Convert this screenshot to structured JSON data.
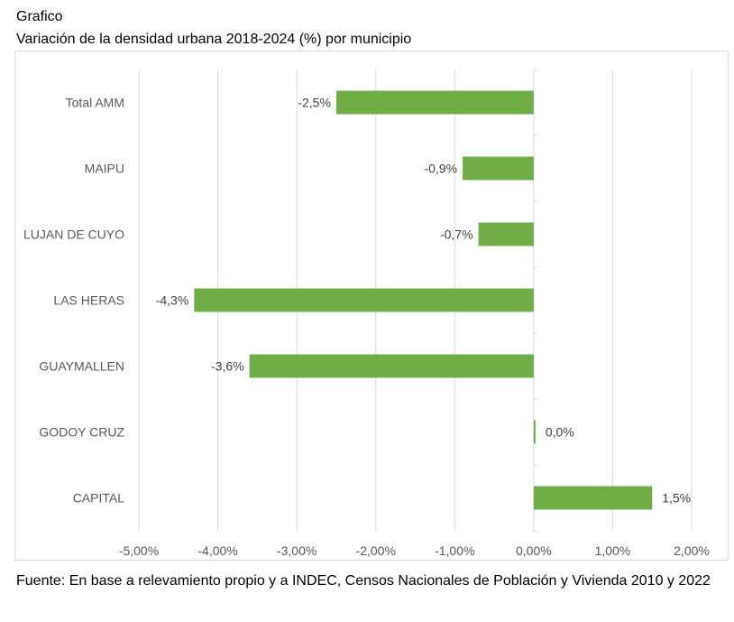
{
  "header": {
    "label": "Grafico",
    "title": "Variación de la densidad urbana 2018-2024 (%) por municipio"
  },
  "chart_data": {
    "type": "bar",
    "orientation": "horizontal",
    "title": "Variación de la densidad urbana 2018-2024 (%) por municipio",
    "xlabel": "",
    "ylabel": "",
    "categories": [
      "Total AMM",
      "MAIPU",
      "LUJAN DE CUYO",
      "LAS HERAS",
      "GUAYMALLEN",
      "GODOY CRUZ",
      "CAPITAL"
    ],
    "values": [
      -2.5,
      -0.9,
      -0.7,
      -4.3,
      -3.6,
      0.0,
      1.5
    ],
    "data_labels": [
      "-2,5%",
      "-0,9%",
      "-0,7%",
      "-4,3%",
      "-3,6%",
      "0,0%",
      "1,5%"
    ],
    "xlim": [
      -5.0,
      2.0
    ],
    "xticks": [
      -5,
      -4,
      -3,
      -2,
      -1,
      0,
      1,
      2
    ],
    "xtick_labels": [
      "-5,00%",
      "-4,00%",
      "-3,00%",
      "-2,00%",
      "-1,00%",
      "0,00%",
      "1,00%",
      "2,00%"
    ],
    "grid": "vertical",
    "legend": "none",
    "bar_color": "#70ad47",
    "grid_color": "#d9d9d9",
    "axis_color": "#d9d9d9"
  },
  "footer": {
    "source": "Fuente: En base a relevamiento propio y a INDEC, Censos Nacionales de Población y Vivienda 2010 y 2022"
  }
}
